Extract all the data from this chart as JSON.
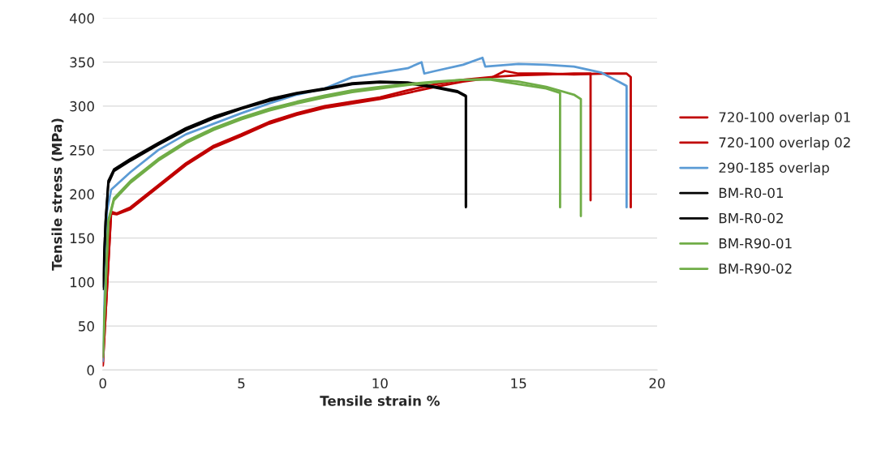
{
  "chart_data": {
    "type": "line",
    "xlabel": "Tensile strain %",
    "ylabel": "Tensile stress (MPa)",
    "xlim": [
      0,
      20
    ],
    "xticks": [
      0,
      5,
      10,
      15,
      20
    ],
    "ylim": [
      0,
      400
    ],
    "yticks": [
      0,
      50,
      100,
      150,
      200,
      250,
      300,
      350,
      400
    ],
    "grid": "y",
    "legend": "right",
    "marker": "none",
    "line_style": "solid",
    "series": [
      {
        "name": "720-100 overlap 01",
        "color": "#c00000",
        "x": [
          0,
          0.3,
          0.5,
          1,
          2,
          3,
          4,
          5,
          6,
          7,
          8,
          9,
          10,
          11,
          12,
          13,
          14,
          15,
          16,
          17,
          17.6,
          17.6
        ],
        "values": [
          5,
          180,
          178,
          185,
          210,
          235,
          255,
          268,
          282,
          292,
          300,
          305,
          310,
          318,
          325,
          330,
          333,
          335,
          336,
          337,
          337,
          193
        ]
      },
      {
        "name": "720-100 overlap 02",
        "color": "#c00000",
        "x": [
          0,
          0.3,
          0.5,
          1,
          2,
          3,
          4,
          5,
          6,
          7,
          8,
          9,
          10,
          11,
          12,
          13,
          14,
          14.5,
          15,
          16,
          17,
          18,
          18.9,
          19.05,
          19.05
        ],
        "values": [
          5,
          178,
          177,
          183,
          208,
          233,
          253,
          266,
          280,
          290,
          298,
          303,
          308,
          315,
          322,
          328,
          332,
          340,
          337,
          337,
          336,
          337,
          337,
          333,
          185
        ]
      },
      {
        "name": "290-185 overlap",
        "color": "#5b9bd5",
        "x": [
          0,
          0.15,
          0.3,
          1,
          2,
          3,
          4,
          5,
          6,
          7,
          8,
          9,
          10,
          11,
          11.5,
          11.6,
          12,
          13,
          13.7,
          13.8,
          15,
          16,
          17,
          18,
          18.9,
          18.9
        ],
        "values": [
          10,
          180,
          205,
          225,
          250,
          268,
          280,
          292,
          303,
          313,
          320,
          333,
          338,
          343,
          350,
          337,
          340,
          347,
          355,
          345,
          348,
          347,
          345,
          338,
          323,
          185
        ]
      },
      {
        "name": "BM-R0-01",
        "color": "#000000",
        "x": [
          0,
          0.1,
          0.2,
          0.4,
          1,
          2,
          3,
          4,
          5,
          6,
          7,
          8,
          9,
          10,
          11,
          12,
          12.8,
          13.1,
          13.1
        ],
        "values": [
          92,
          170,
          215,
          228,
          240,
          258,
          275,
          288,
          298,
          308,
          315,
          320,
          326,
          328,
          327,
          322,
          317,
          312,
          185
        ]
      },
      {
        "name": "BM-R0-02",
        "color": "#000000",
        "x": [
          0,
          0.1,
          0.2,
          0.4,
          1,
          2,
          3,
          4,
          5,
          6,
          7,
          8,
          9,
          10,
          11,
          12,
          12.8,
          13.1,
          13.1
        ],
        "values": [
          95,
          168,
          212,
          226,
          238,
          256,
          273,
          286,
          297,
          306,
          314,
          319,
          325,
          327,
          326,
          321,
          316,
          311,
          186
        ]
      },
      {
        "name": "BM-R90-01",
        "color": "#70ad47",
        "x": [
          0,
          0.2,
          0.4,
          1,
          2,
          3,
          4,
          5,
          6,
          7,
          8,
          9,
          10,
          11,
          12,
          13,
          14,
          15,
          16,
          16.5,
          16.5
        ],
        "values": [
          15,
          170,
          195,
          215,
          240,
          260,
          275,
          287,
          297,
          305,
          312,
          318,
          322,
          325,
          328,
          330,
          330,
          325,
          320,
          315,
          185
        ]
      },
      {
        "name": "BM-R90-02",
        "color": "#70ad47",
        "x": [
          0,
          0.2,
          0.4,
          1,
          2,
          3,
          4,
          5,
          6,
          7,
          8,
          9,
          10,
          11,
          12,
          13,
          14,
          15,
          16,
          17,
          17.25,
          17.25
        ],
        "values": [
          15,
          168,
          193,
          213,
          238,
          258,
          273,
          285,
          295,
          303,
          310,
          316,
          320,
          324,
          327,
          330,
          331,
          328,
          322,
          313,
          308,
          175
        ]
      }
    ]
  }
}
